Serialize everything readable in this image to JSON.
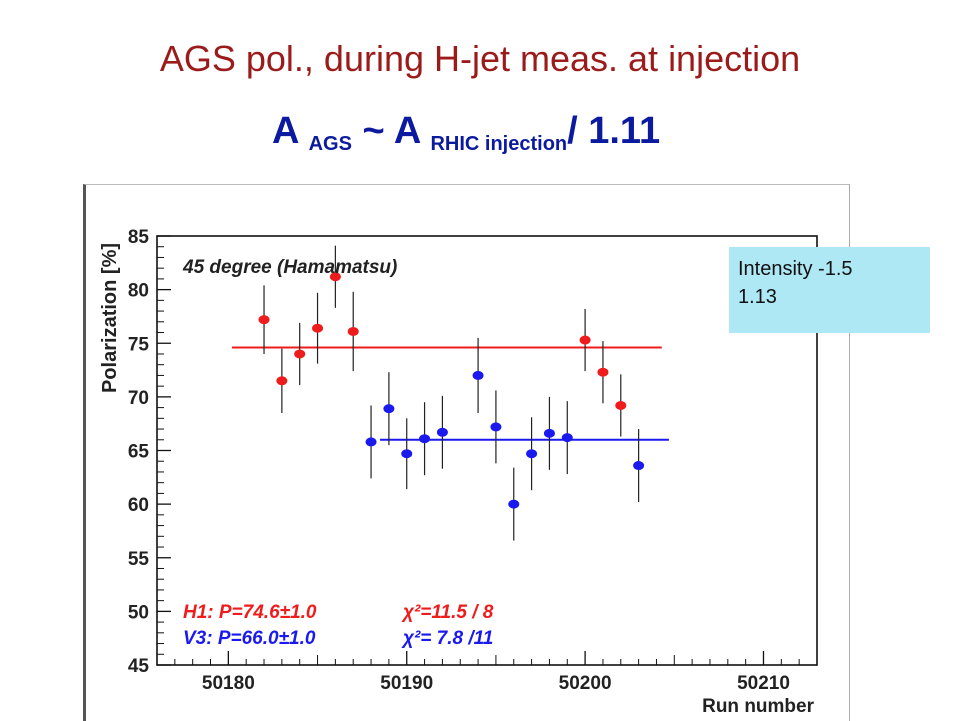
{
  "slide": {
    "title": "AGS pol., during H-jet meas. at injection",
    "formula": {
      "part1": "A",
      "sub1": "AGS",
      "part2": " ~ A",
      "sub2": "RHIC injection",
      "part3": "/ 1.11"
    }
  },
  "intensity_box": {
    "line1": "Intensity -1.5",
    "line2": "1.13",
    "background": "#aee8f4"
  },
  "chart_data": {
    "type": "scatter",
    "title": "45 degree (Hamamatsu)",
    "xlabel": "Run number",
    "ylabel": "Polarization [%]",
    "xlim": [
      50176,
      50213
    ],
    "ylim": [
      45,
      85
    ],
    "x_ticks": [
      50180,
      50190,
      50200,
      50210
    ],
    "y_ticks": [
      45,
      50,
      55,
      60,
      65,
      70,
      75,
      80,
      85
    ],
    "grid": false,
    "series": [
      {
        "name": "H1",
        "color": "#ee1c1c",
        "fit": {
          "value": 74.6,
          "x_range": [
            50180.2,
            50204.3
          ]
        },
        "points": [
          {
            "x": 50182,
            "y": 77.2,
            "err": 3.2
          },
          {
            "x": 50183,
            "y": 71.5,
            "err": 3.0
          },
          {
            "x": 50184,
            "y": 74.0,
            "err": 2.9
          },
          {
            "x": 50185,
            "y": 76.4,
            "err": 3.3
          },
          {
            "x": 50186,
            "y": 81.2,
            "err": 2.9
          },
          {
            "x": 50187,
            "y": 76.1,
            "err": 3.7
          },
          {
            "x": 50200,
            "y": 75.3,
            "err": 2.9
          },
          {
            "x": 50201,
            "y": 72.3,
            "err": 2.9
          },
          {
            "x": 50202,
            "y": 69.2,
            "err": 2.9
          }
        ]
      },
      {
        "name": "V3",
        "color": "#1a1aee",
        "fit": {
          "value": 66.0,
          "x_range": [
            50188.5,
            50204.7
          ]
        },
        "points": [
          {
            "x": 50188,
            "y": 65.8,
            "err": 3.4
          },
          {
            "x": 50189,
            "y": 68.9,
            "err": 3.4
          },
          {
            "x": 50190,
            "y": 64.7,
            "err": 3.3
          },
          {
            "x": 50191,
            "y": 66.1,
            "err": 3.4
          },
          {
            "x": 50192,
            "y": 66.7,
            "err": 3.4
          },
          {
            "x": 50194,
            "y": 72.0,
            "err": 3.5
          },
          {
            "x": 50195,
            "y": 67.2,
            "err": 3.4
          },
          {
            "x": 50196,
            "y": 60.0,
            "err": 3.4
          },
          {
            "x": 50197,
            "y": 64.7,
            "err": 3.4
          },
          {
            "x": 50198,
            "y": 66.6,
            "err": 3.4
          },
          {
            "x": 50199,
            "y": 66.2,
            "err": 3.4
          },
          {
            "x": 50203,
            "y": 63.6,
            "err": 3.4
          }
        ]
      }
    ],
    "annotations": [
      {
        "id": "h1",
        "fit_label": "H1: P=74.6±1.0",
        "chi_label": "χ²=11.5 / 8",
        "color": "#ee1c1c"
      },
      {
        "id": "v3",
        "fit_label": "V3: P=66.0±1.0",
        "chi_label": "χ²= 7.8 /11",
        "color": "#1a1aee"
      }
    ]
  }
}
